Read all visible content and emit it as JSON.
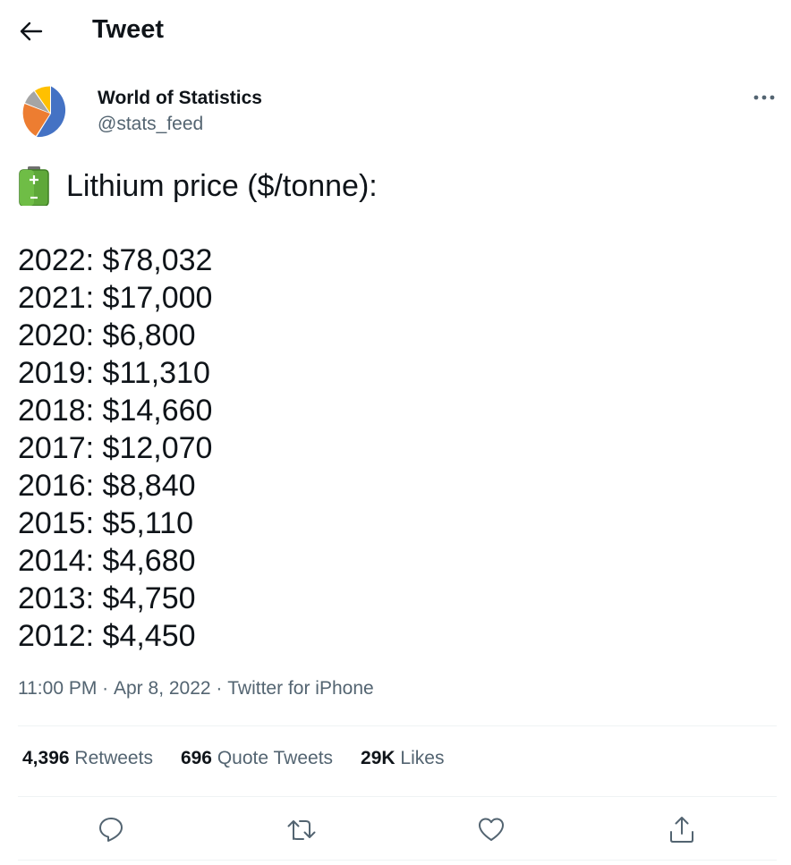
{
  "header": {
    "title": "Tweet"
  },
  "author": {
    "name": "World of Statistics",
    "handle": "@stats_feed"
  },
  "tweet": {
    "heading": "Lithium price ($/tonne):",
    "prices": [
      "2022: $78,032",
      "2021: $17,000",
      "2020: $6,800",
      "2019: $11,310",
      "2018: $14,660",
      "2017: $12,070",
      "2016: $8,840",
      "2015: $5,110",
      "2014: $4,680",
      "2013: $4,750",
      "2012: $4,450"
    ]
  },
  "meta": {
    "time": "11:00 PM",
    "sep1": " · ",
    "date": "Apr 8, 2022",
    "sep2": " · ",
    "source": "Twitter for iPhone"
  },
  "stats": {
    "retweets": {
      "count": "4,396",
      "label": "Retweets"
    },
    "quotes": {
      "count": "696",
      "label": "Quote Tweets"
    },
    "likes": {
      "count": "29K",
      "label": "Likes"
    }
  },
  "icons": {
    "back": "arrow-left-icon",
    "more": "more-dots-icon",
    "battery": "battery-emoji-icon",
    "reply": "reply-icon",
    "retweet": "retweet-icon",
    "like": "heart-icon",
    "share": "share-icon"
  },
  "colors": {
    "text": "#0f1419",
    "secondary": "#536471",
    "divider": "#eff3f4",
    "avatar_blue": "#4472c4",
    "avatar_orange": "#ed7d31",
    "avatar_gray": "#a5a5a5",
    "avatar_yellow": "#ffc000"
  }
}
